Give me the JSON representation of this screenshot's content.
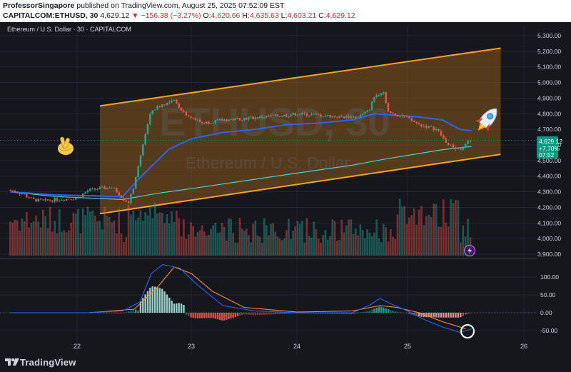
{
  "header": {
    "publisher": "ProfessorSingapore",
    "published_text": "published on TradingView.com, August 25, 2025 07:52:09 EST",
    "symbol_line": "CAPITALCOM:ETHUSD, 30",
    "last_price": "4,629.12",
    "change_text": "▼ −156.38 (−3.27%)",
    "o_label": "O:",
    "o_value": "4,620.66",
    "h_label": "H:",
    "h_value": "4,635.63",
    "l_label": "L:",
    "l_value": "4,603.21",
    "c_label": "C:",
    "c_value": "4,629.12"
  },
  "chart": {
    "legend_title": "Ethereum / U.S. Dollar · 30 · CAPITALCOM",
    "watermark_symbol": "ETHUSD, 30",
    "watermark_name": "Ethereum / U.S. Dollar",
    "price_tag": {
      "price": "4,629.12",
      "change": "+7.70%",
      "time": "07:52"
    },
    "colors": {
      "up": "#26a69a",
      "down": "#ef5350",
      "channel": "#f7a21b",
      "channel_fill": "#8a5a1e",
      "ma_blue": "#2962ff",
      "ma_teal": "#4dd0c8",
      "macd_line": "#2962ff",
      "signal_line": "#ff8f2b",
      "background": "#16171c"
    },
    "icons": [
      "crossed-fingers-icon",
      "rocket-icon",
      "lightning-icon"
    ]
  },
  "chart_data": [
    {
      "type": "candlestick",
      "title": "Ethereum / U.S. Dollar · 30 · CAPITALCOM",
      "x_ticks": [
        "22",
        "23",
        "24",
        "25",
        "26"
      ],
      "y_ticks": [
        "5,300.00",
        "5,200.00",
        "5,100.00",
        "5,000.00",
        "4,900.00",
        "4,800.00",
        "4,700.00",
        "4,600.00",
        "4,500.00",
        "4,400.00",
        "4,300.00",
        "4,200.00",
        "4,100.00",
        "4,000.00",
        "3,900.00"
      ],
      "ylim": [
        3900,
        5300
      ],
      "price_path": [
        [
          21.4,
          4310
        ],
        [
          21.5,
          4290
        ],
        [
          21.6,
          4250
        ],
        [
          21.7,
          4240
        ],
        [
          21.8,
          4250
        ],
        [
          21.9,
          4255
        ],
        [
          22.0,
          4260
        ],
        [
          22.1,
          4310
        ],
        [
          22.2,
          4320
        ],
        [
          22.3,
          4330
        ],
        [
          22.35,
          4300
        ],
        [
          22.45,
          4220
        ],
        [
          22.52,
          4400
        ],
        [
          22.58,
          4620
        ],
        [
          22.65,
          4820
        ],
        [
          22.75,
          4860
        ],
        [
          22.85,
          4880
        ],
        [
          22.95,
          4800
        ],
        [
          23.1,
          4740
        ],
        [
          23.3,
          4760
        ],
        [
          23.5,
          4770
        ],
        [
          23.7,
          4780
        ],
        [
          23.9,
          4790
        ],
        [
          24.0,
          4800
        ],
        [
          24.2,
          4790
        ],
        [
          24.4,
          4780
        ],
        [
          24.55,
          4780
        ],
        [
          24.65,
          4820
        ],
        [
          24.7,
          4910
        ],
        [
          24.78,
          4950
        ],
        [
          24.83,
          4800
        ],
        [
          24.95,
          4790
        ],
        [
          25.1,
          4730
        ],
        [
          25.25,
          4700
        ],
        [
          25.35,
          4600
        ],
        [
          25.45,
          4570
        ],
        [
          25.5,
          4610
        ],
        [
          25.54,
          4629
        ]
      ],
      "ma_slow": [
        [
          21.4,
          4300
        ],
        [
          21.8,
          4280
        ],
        [
          22.1,
          4275
        ],
        [
          22.4,
          4270
        ],
        [
          22.55,
          4390
        ],
        [
          22.8,
          4570
        ],
        [
          23.0,
          4640
        ],
        [
          23.3,
          4680
        ],
        [
          23.6,
          4700
        ],
        [
          23.9,
          4730
        ],
        [
          24.2,
          4740
        ],
        [
          24.5,
          4760
        ],
        [
          24.7,
          4800
        ],
        [
          24.9,
          4790
        ],
        [
          25.1,
          4780
        ],
        [
          25.3,
          4760
        ],
        [
          25.45,
          4700
        ],
        [
          25.55,
          4690
        ]
      ],
      "ma_fast": [
        [
          21.4,
          4300
        ],
        [
          21.8,
          4270
        ],
        [
          22.1,
          4260
        ],
        [
          22.4,
          4250
        ],
        [
          22.7,
          4290
        ],
        [
          23.0,
          4320
        ],
        [
          23.3,
          4350
        ],
        [
          23.6,
          4380
        ],
        [
          23.9,
          4410
        ],
        [
          24.2,
          4440
        ],
        [
          24.5,
          4470
        ],
        [
          24.8,
          4510
        ],
        [
          25.1,
          4545
        ],
        [
          25.3,
          4570
        ],
        [
          25.55,
          4590
        ]
      ],
      "channel_upper": [
        [
          22.2,
          4850
        ],
        [
          25.8,
          5220
        ]
      ],
      "channel_lower": [
        [
          22.2,
          4160
        ],
        [
          25.8,
          4540
        ]
      ],
      "last_price": 4629.12
    },
    {
      "type": "bar",
      "title": "Volume",
      "note": "volume histogram in lower part of price pane"
    },
    {
      "type": "line",
      "title": "MACD",
      "x_ticks": [
        "22",
        "23",
        "24",
        "25",
        "26"
      ],
      "y_ticks": [
        "100.00",
        "50.00",
        "0.00",
        "-50.00"
      ],
      "ylim": [
        -60,
        140
      ],
      "macd": [
        [
          21.4,
          0
        ],
        [
          22.1,
          0
        ],
        [
          22.4,
          5
        ],
        [
          22.55,
          30
        ],
        [
          22.65,
          110
        ],
        [
          22.75,
          135
        ],
        [
          22.9,
          125
        ],
        [
          23.05,
          80
        ],
        [
          23.3,
          20
        ],
        [
          23.6,
          5
        ],
        [
          24.0,
          0
        ],
        [
          24.5,
          0
        ],
        [
          24.65,
          20
        ],
        [
          24.75,
          40
        ],
        [
          24.85,
          25
        ],
        [
          25.0,
          5
        ],
        [
          25.15,
          -20
        ],
        [
          25.3,
          -40
        ],
        [
          25.45,
          -55
        ],
        [
          25.55,
          -45
        ]
      ],
      "signal": [
        [
          21.4,
          0
        ],
        [
          22.1,
          0
        ],
        [
          22.5,
          10
        ],
        [
          22.7,
          70
        ],
        [
          22.85,
          128
        ],
        [
          23.0,
          110
        ],
        [
          23.2,
          60
        ],
        [
          23.5,
          15
        ],
        [
          24.0,
          2
        ],
        [
          24.5,
          5
        ],
        [
          24.75,
          20
        ],
        [
          24.9,
          15
        ],
        [
          25.1,
          0
        ],
        [
          25.3,
          -25
        ],
        [
          25.5,
          -45
        ]
      ],
      "histogram_note": "green above zero, red/pink below zero"
    }
  ],
  "footer": {
    "brand": "TradingView"
  }
}
